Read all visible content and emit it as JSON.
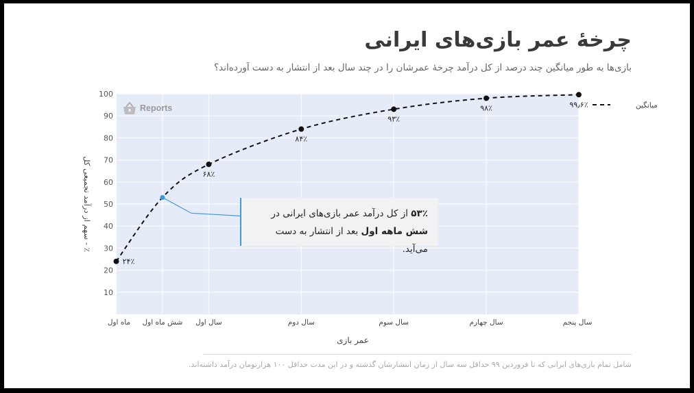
{
  "title": "چرخهٔ عمر بازی‌های ایرانی",
  "subtitle": "بازی‌ها به طور میانگین چند درصد از کل درآمد چرخهٔ عمرشان را در چند سال بعد از انتشار به دست آورده‌اند؟",
  "footnote": "شامل تمام بازی‌های ایرانی که تا فروردین ۹۹ حداقل سه سال از زمان انتشارشان گذشته و در این مدت حداقل ۱۰۰ هزارتومان درآمد داشته‌اند.",
  "logo_text": "Reports",
  "annotation": {
    "pct": "۵۳٪",
    "line1_rest": " از کل درآمد عمر بازی‌های ایرانی در",
    "bold": "شش ماهه اول",
    "line2_rest": " بعد از انتشار به دست می‌آید."
  },
  "chart_data": {
    "type": "line",
    "xlabel": "عمر بازی",
    "ylabel": "٪ - سهم از درآمد تجمیعی کل",
    "ylim": [
      0,
      100
    ],
    "yticks": [
      10,
      20,
      30,
      40,
      50,
      60,
      70,
      80,
      90,
      100
    ],
    "xlim_months": [
      0,
      60
    ],
    "x_ticks": [
      {
        "months": 0,
        "label": "ماه اول"
      },
      {
        "months": 6,
        "label": "شش ماه اول"
      },
      {
        "months": 12,
        "label": "سال اول"
      },
      {
        "months": 24,
        "label": "سال دوم"
      },
      {
        "months": 36,
        "label": "سال سوم"
      },
      {
        "months": 48,
        "label": "سال چهارم"
      },
      {
        "months": 60,
        "label": "سال پنجم"
      }
    ],
    "series": [
      {
        "name": "میانگین",
        "points": [
          {
            "months": 0,
            "value": 24,
            "label": "۲۴٪"
          },
          {
            "months": 6,
            "value": 53,
            "label": ""
          },
          {
            "months": 12,
            "value": 68,
            "label": "۶۸٪"
          },
          {
            "months": 24,
            "value": 84,
            "label": "۸۴٪"
          },
          {
            "months": 36,
            "value": 93,
            "label": "۹۳٪"
          },
          {
            "months": 48,
            "value": 98,
            "label": "۹۸٪"
          },
          {
            "months": 60,
            "value": 99.6,
            "label": "۹۹٫۶٪"
          }
        ]
      }
    ],
    "highlight_point_months": 6,
    "legend_position": "right",
    "grid": true,
    "colors": {
      "plot_bg": "#e6ecf7",
      "line": "#111111",
      "highlight": "#3d9ad8"
    }
  }
}
